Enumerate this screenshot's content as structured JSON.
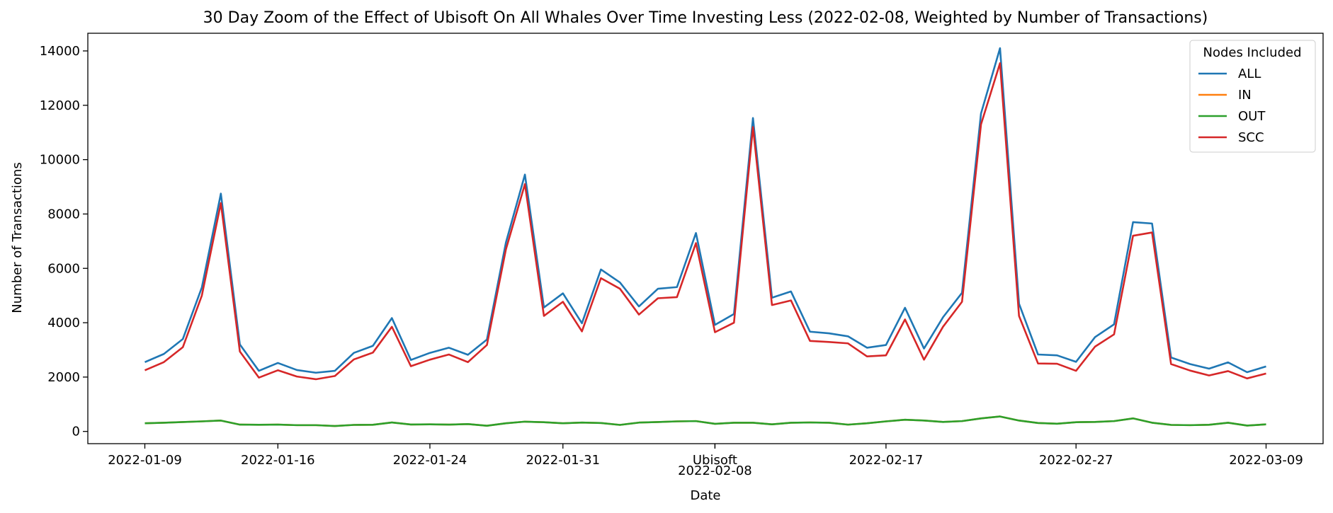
{
  "chart_data": {
    "type": "line",
    "title": "30 Day Zoom of the Effect of Ubisoft On All Whales Over Time Investing Less (2022-02-08, Weighted by Number of Transactions)",
    "xlabel": "Date",
    "ylabel": "Number of Transactions",
    "ylim": [
      -450,
      14650
    ],
    "yticks": [
      0,
      2000,
      4000,
      6000,
      8000,
      10000,
      12000,
      14000
    ],
    "ytick_labels": [
      "0",
      "2000",
      "4000",
      "6000",
      "8000",
      "10000",
      "12000",
      "14000"
    ],
    "xlim": [
      "2022-01-06",
      "2022-03-12"
    ],
    "xticks": [
      {
        "date": "2022-01-09",
        "label": "2022-01-09"
      },
      {
        "date": "2022-01-16",
        "label": "2022-01-16"
      },
      {
        "date": "2022-01-24",
        "label": "2022-01-24"
      },
      {
        "date": "2022-01-31",
        "label": "2022-01-31"
      },
      {
        "date": "2022-02-08",
        "label": "2022-02-08"
      },
      {
        "date": "2022-02-17",
        "label": "2022-02-17"
      },
      {
        "date": "2022-02-27",
        "label": "2022-02-27"
      },
      {
        "date": "2022-03-09",
        "label": "2022-03-09"
      }
    ],
    "annotation": {
      "date": "2022-02-08",
      "label": "Ubisoft"
    },
    "legend": {
      "title": "Nodes Included",
      "location": "top-right"
    },
    "grid": false,
    "x": [
      "2022-01-09",
      "2022-01-10",
      "2022-01-11",
      "2022-01-12",
      "2022-01-13",
      "2022-01-14",
      "2022-01-15",
      "2022-01-16",
      "2022-01-17",
      "2022-01-18",
      "2022-01-19",
      "2022-01-20",
      "2022-01-21",
      "2022-01-22",
      "2022-01-23",
      "2022-01-24",
      "2022-01-25",
      "2022-01-26",
      "2022-01-27",
      "2022-01-28",
      "2022-01-29",
      "2022-01-30",
      "2022-01-31",
      "2022-02-01",
      "2022-02-02",
      "2022-02-03",
      "2022-02-04",
      "2022-02-05",
      "2022-02-06",
      "2022-02-07",
      "2022-02-08",
      "2022-02-09",
      "2022-02-10",
      "2022-02-11",
      "2022-02-12",
      "2022-02-13",
      "2022-02-14",
      "2022-02-15",
      "2022-02-16",
      "2022-02-17",
      "2022-02-18",
      "2022-02-19",
      "2022-02-20",
      "2022-02-21",
      "2022-02-22",
      "2022-02-23",
      "2022-02-24",
      "2022-02-25",
      "2022-02-26",
      "2022-02-27",
      "2022-02-28",
      "2022-03-01",
      "2022-03-02",
      "2022-03-03",
      "2022-03-04",
      "2022-03-05",
      "2022-03-06",
      "2022-03-07",
      "2022-03-08",
      "2022-03-09"
    ],
    "series": [
      {
        "name": "ALL",
        "color": "#1f77b4",
        "values": [
          2550,
          2850,
          3400,
          5300,
          8750,
          3200,
          2230,
          2520,
          2260,
          2160,
          2230,
          2890,
          3150,
          4170,
          2630,
          2890,
          3080,
          2820,
          3380,
          6950,
          9450,
          4560,
          5080,
          3980,
          5960,
          5480,
          4600,
          5250,
          5310,
          7300,
          3920,
          4320,
          11530,
          4920,
          5150,
          3670,
          3610,
          3500,
          3080,
          3180,
          4550,
          3050,
          4200,
          5100,
          11700,
          14100,
          4700,
          2830,
          2800,
          2560,
          3470,
          3940,
          7700,
          7650,
          2720,
          2480,
          2310,
          2540,
          2180,
          2390
        ]
      },
      {
        "name": "IN",
        "color": "#ff7f0e",
        "values": [
          300,
          320,
          345,
          370,
          400,
          250,
          245,
          250,
          230,
          230,
          200,
          240,
          245,
          330,
          255,
          260,
          250,
          270,
          210,
          300,
          360,
          340,
          300,
          325,
          310,
          240,
          325,
          345,
          370,
          380,
          280,
          320,
          320,
          260,
          320,
          330,
          320,
          250,
          300,
          370,
          430,
          400,
          350,
          380,
          480,
          550,
          400,
          310,
          285,
          340,
          350,
          380,
          480,
          320,
          240,
          230,
          245,
          320,
          215,
          260
        ]
      },
      {
        "name": "OUT",
        "color": "#2ca02c",
        "values": [
          300,
          320,
          345,
          370,
          400,
          250,
          245,
          250,
          230,
          230,
          200,
          240,
          245,
          330,
          255,
          260,
          250,
          270,
          210,
          300,
          360,
          340,
          300,
          325,
          310,
          240,
          325,
          345,
          370,
          380,
          280,
          320,
          320,
          260,
          320,
          330,
          320,
          250,
          300,
          370,
          430,
          400,
          350,
          380,
          480,
          550,
          400,
          310,
          285,
          340,
          350,
          380,
          480,
          320,
          240,
          230,
          245,
          320,
          215,
          260
        ]
      },
      {
        "name": "SCC",
        "color": "#d62728",
        "values": [
          2250,
          2550,
          3100,
          5000,
          8400,
          2940,
          1980,
          2250,
          2020,
          1920,
          2040,
          2650,
          2900,
          3850,
          2400,
          2640,
          2830,
          2550,
          3180,
          6700,
          9100,
          4250,
          4770,
          3680,
          5640,
          5250,
          4300,
          4900,
          4940,
          6930,
          3650,
          4000,
          11200,
          4650,
          4820,
          3330,
          3290,
          3240,
          2760,
          2800,
          4120,
          2640,
          3850,
          4770,
          11300,
          13550,
          4250,
          2500,
          2490,
          2230,
          3120,
          3570,
          7200,
          7320,
          2480,
          2240,
          2060,
          2220,
          1950,
          2130
        ]
      }
    ]
  }
}
